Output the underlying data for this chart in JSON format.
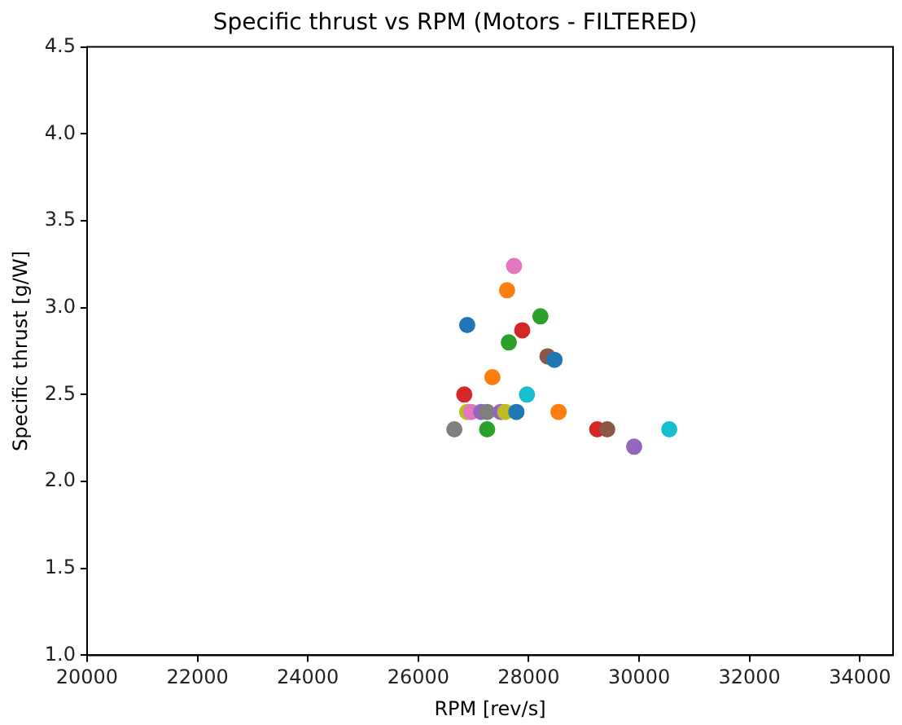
{
  "chart_data": {
    "type": "scatter",
    "title": "Specific thrust vs RPM (Motors - FILTERED)",
    "xlabel": "RPM [rev/s]",
    "ylabel": "Specific thrust [g/W]",
    "x": [
      27735,
      27608,
      26886,
      28212,
      27883,
      27640,
      28340,
      28467,
      27342,
      26833,
      27968,
      26886,
      26960,
      27141,
      27247,
      27491,
      27576,
      27777,
      28541,
      26653,
      27247,
      29241,
      29422,
      30546,
      29910
    ],
    "values": [
      3.24,
      3.1,
      2.9,
      2.95,
      2.87,
      2.8,
      2.72,
      2.7,
      2.6,
      2.5,
      2.5,
      2.4,
      2.4,
      2.4,
      2.4,
      2.4,
      2.4,
      2.4,
      2.4,
      2.3,
      2.3,
      2.3,
      2.3,
      2.3,
      2.2
    ],
    "colors": [
      "#e377c2",
      "#ff7f0e",
      "#1f77b4",
      "#2ca02c",
      "#d62728",
      "#2ca02c",
      "#8c564b",
      "#1f77b4",
      "#ff7f0e",
      "#d62728",
      "#17becf",
      "#bcbd22",
      "#e377c2",
      "#9467bd",
      "#7f7f7f",
      "#9467bd",
      "#bcbd22",
      "#1f77b4",
      "#ff7f0e",
      "#7f7f7f",
      "#2ca02c",
      "#d62728",
      "#8c564b",
      "#17becf",
      "#9467bd"
    ],
    "xlim": [
      20000,
      34600
    ],
    "ylim": [
      1.0,
      4.5
    ],
    "xticks": [
      20000,
      22000,
      24000,
      26000,
      28000,
      30000,
      32000,
      34000
    ],
    "yticks": [
      {
        "value": 1.0,
        "label": "1.0"
      },
      {
        "value": 1.5,
        "label": "1.5"
      },
      {
        "value": 2.0,
        "label": "2.0"
      },
      {
        "value": 2.5,
        "label": "2.5"
      },
      {
        "value": 3.0,
        "label": "3.0"
      },
      {
        "value": 3.5,
        "label": "3.5"
      },
      {
        "value": 4.0,
        "label": "4.0"
      },
      {
        "value": 4.5,
        "label": "4.5"
      }
    ],
    "grid": false,
    "legend": false,
    "marker": "circle"
  }
}
